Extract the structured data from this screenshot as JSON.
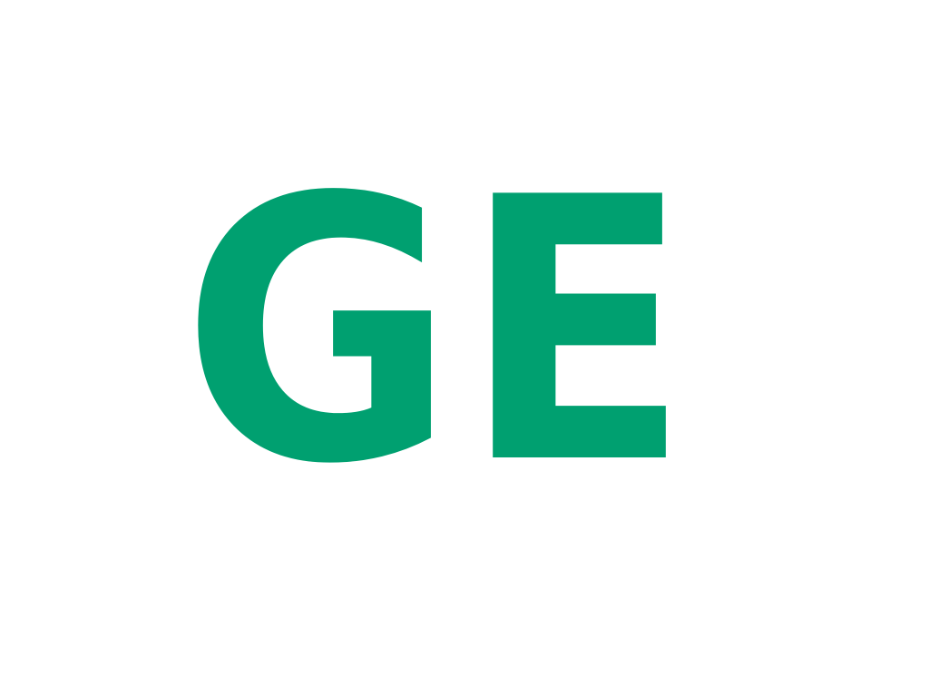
{
  "text": {
    "value": "GE",
    "color": "#00a070"
  }
}
